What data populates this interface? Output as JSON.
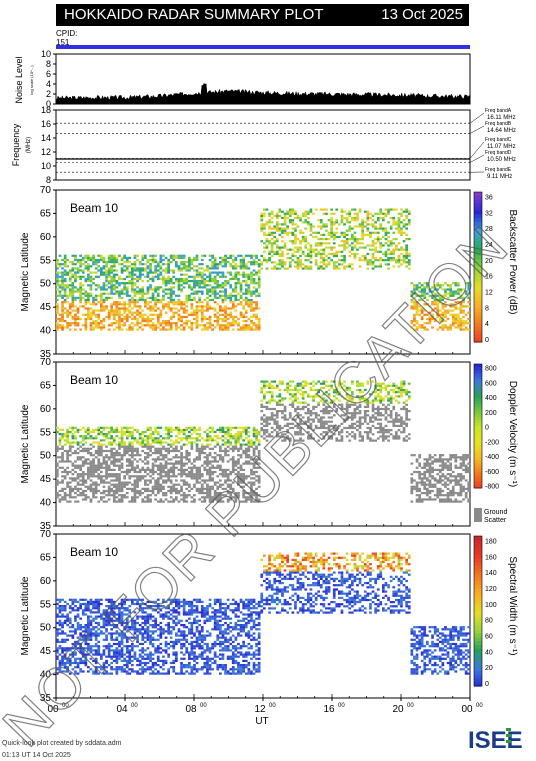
{
  "header": {
    "title": "HOKKAIDO RADAR SUMMARY PLOT",
    "date": "13 Oct 2025"
  },
  "cpid": {
    "label": "CPID:",
    "value": "151",
    "bar_color": "#3030e0"
  },
  "noise_panel": {
    "ylabel": "Noise Level",
    "ysub": "log scale (10^...)",
    "ticks": [
      "0",
      "2",
      "4",
      "6",
      "8",
      "10"
    ]
  },
  "freq_panel": {
    "ylabel": "Frequency",
    "yunit": "(MHz)",
    "ticks": [
      "8",
      "10",
      "12",
      "14",
      "16",
      "18"
    ],
    "bands": [
      "Freq bandA 16.11 MHz",
      "Freq bandB 14.64 MHz",
      "Freq bandC 11.07 MHz",
      "Freq bandD 10.50 MHz",
      "Freq bandE 9.11 MHz"
    ]
  },
  "panels": [
    {
      "beam": "Beam 10",
      "ylabel": "Magnetic Latitude",
      "cbar_label": "Backscatter Power (dB)",
      "cbar_ticks": [
        "0",
        "4",
        "8",
        "12",
        "16",
        "20",
        "24",
        "28",
        "32",
        "36"
      ]
    },
    {
      "beam": "Beam 10",
      "ylabel": "Magnetic Latitude",
      "cbar_label": "Doppler Velocity (m s⁻¹)",
      "cbar_ticks": [
        "-800",
        "-600",
        "-400",
        "-200",
        "0",
        "200",
        "400",
        "600",
        "800"
      ],
      "gs_label": "Ground Scatter"
    },
    {
      "beam": "Beam 10",
      "ylabel": "Magnetic Latitude",
      "cbar_label": "Spectral Width (m s⁻¹)",
      "cbar_ticks": [
        "0",
        "20",
        "40",
        "60",
        "80",
        "100",
        "120",
        "140",
        "160",
        "180"
      ]
    }
  ],
  "x_axis": {
    "label": "UT",
    "ticks": [
      "00",
      "04",
      "08",
      "12",
      "16",
      "20",
      "00"
    ],
    "tick_sup": "00"
  },
  "footer": {
    "line1": "Quick-look plot created by sddata.adm",
    "line2": "01:13 UT 14 Oct 2025"
  },
  "watermark": "NOT FOR PUBLICATION",
  "logo": "ISEE",
  "chart_data": [
    {
      "type": "line",
      "title": "Noise Level",
      "ylim": [
        0,
        10
      ],
      "xlim_hours": [
        0,
        24
      ],
      "x": [
        0,
        2,
        4,
        6,
        8,
        10,
        12,
        14,
        16,
        18,
        20,
        22,
        24
      ],
      "y": [
        1.2,
        1.3,
        1.3,
        1.6,
        2.2,
        2.6,
        2.3,
        2.1,
        2.0,
        1.9,
        1.8,
        1.6,
        1.5
      ]
    },
    {
      "type": "scatter",
      "title": "Frequency",
      "ylim": [
        8,
        18
      ],
      "series": [
        {
          "name": "Frequency",
          "values": [
            10.5
          ]
        }
      ]
    },
    {
      "type": "heatmap",
      "title": "Beam 10 Backscatter Power",
      "xlabel": "UT",
      "ylabel": "Magnetic Latitude",
      "ylim": [
        35,
        70
      ],
      "xlim_hours": [
        0,
        24
      ],
      "colorbar": {
        "label": "Backscatter Power (dB)",
        "range": [
          0,
          36
        ]
      }
    },
    {
      "type": "heatmap",
      "title": "Beam 10 Doppler Velocity",
      "xlabel": "UT",
      "ylabel": "Magnetic Latitude",
      "ylim": [
        35,
        70
      ],
      "xlim_hours": [
        0,
        24
      ],
      "colorbar": {
        "label": "Doppler Velocity (m s-1)",
        "range": [
          -800,
          800
        ]
      }
    },
    {
      "type": "heatmap",
      "title": "Beam 10 Spectral Width",
      "xlabel": "UT",
      "ylabel": "Magnetic Latitude",
      "ylim": [
        35,
        70
      ],
      "xlim_hours": [
        0,
        24
      ],
      "colorbar": {
        "label": "Spectral Width (m s-1)",
        "range": [
          0,
          180
        ]
      }
    }
  ]
}
